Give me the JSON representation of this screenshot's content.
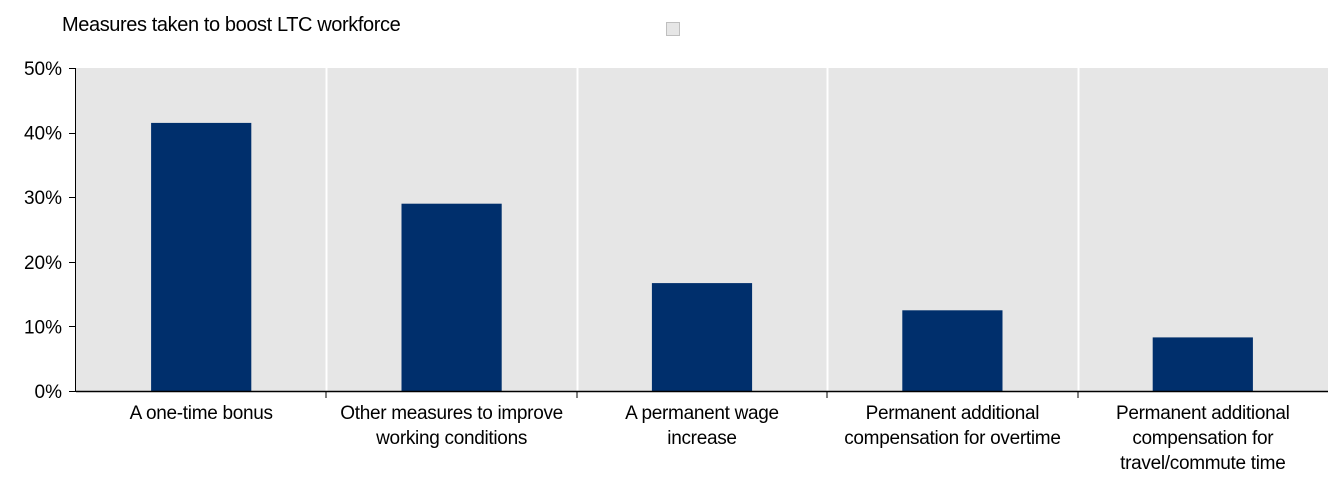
{
  "chart_data": {
    "type": "bar",
    "title": "Measures taken to boost LTC workforce",
    "categories": [
      "A one-time bonus",
      "Other measures to improve working conditions",
      "A permanent wage increase",
      "Permanent additional compensation for overtime",
      "Permanent additional compensation for travel/commute time"
    ],
    "category_label_lines": [
      [
        "A one-time bonus"
      ],
      [
        "Other measures to improve",
        "working conditions"
      ],
      [
        "A permanent wage",
        "increase"
      ],
      [
        "Permanent additional",
        "compensation for overtime"
      ],
      [
        "Permanent additional",
        "compensation for",
        "travel/commute time"
      ]
    ],
    "values": [
      41.5,
      29,
      16.7,
      12.5,
      8.3
    ],
    "ylim": [
      0,
      50
    ],
    "yticks": [
      0,
      10,
      20,
      30,
      40,
      50
    ],
    "ytick_labels": [
      "0%",
      "10%",
      "20%",
      "30%",
      "40%",
      "50%"
    ],
    "xlabel": "",
    "ylabel": "",
    "grid": "vertical",
    "legend_position": "top-center",
    "colors": {
      "bar": "#002f6c",
      "plot_background": "#e6e6e6",
      "gridline": "#ffffff",
      "axis": "#000000",
      "legend_swatch": "#e6e6e6"
    }
  }
}
